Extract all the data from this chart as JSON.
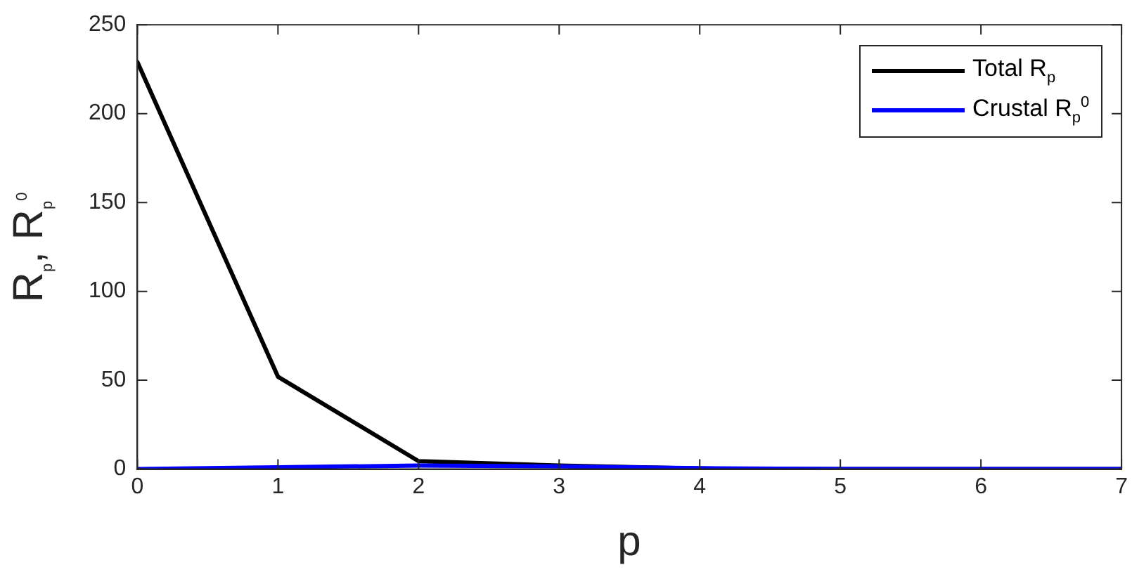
{
  "chart_data": {
    "type": "line",
    "xlabel": "p",
    "ylabel": "R$_{p}$, R$_{p}$$^{0}$",
    "x": [
      0,
      1,
      2,
      3,
      4,
      5,
      6,
      7
    ],
    "series": [
      {
        "name": "Total R$_{p}$",
        "color": "#000000",
        "values": [
          229,
          52,
          4.5,
          2,
          0.3,
          0,
          0,
          0
        ]
      },
      {
        "name": "Crustal R$_{p}$$^{0}$",
        "color": "#0000ff",
        "values": [
          0,
          1,
          2,
          1.5,
          0.5,
          0,
          0,
          0
        ]
      }
    ],
    "xlim": [
      0,
      7
    ],
    "xticks": [
      0,
      1,
      2,
      3,
      4,
      5,
      6,
      7
    ],
    "ylim": [
      0,
      250
    ],
    "yticks": [
      0,
      50,
      100,
      150,
      200,
      250
    ],
    "grid": false,
    "legend": "top right",
    "marker": "none",
    "line_style": "solid"
  }
}
